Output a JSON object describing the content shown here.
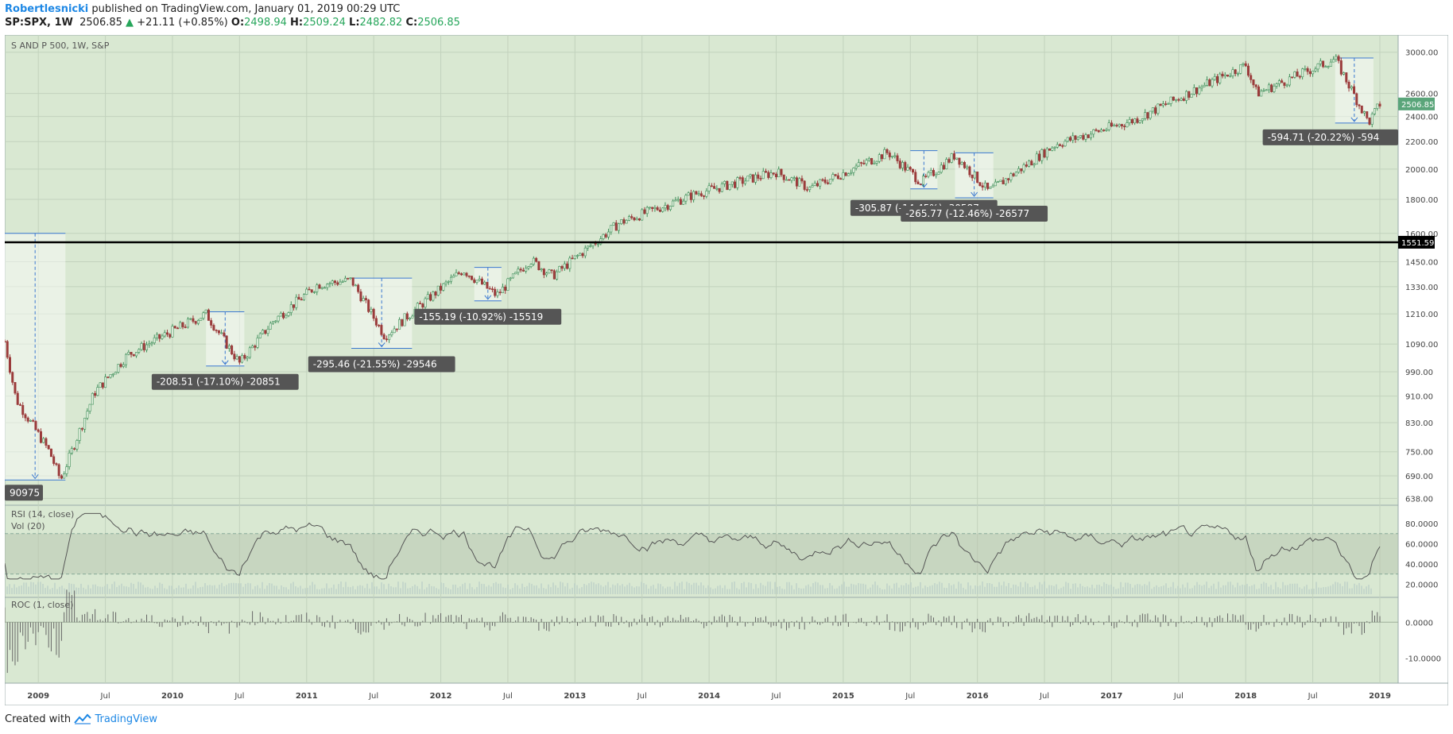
{
  "header": {
    "author": "Robertlesnicki",
    "published": "published on TradingView.com, January 01, 2019 00:29 UTC",
    "symbol": "SP:SPX, 1W",
    "last": "2506.85",
    "change_arrow": "▲",
    "change": "+21.11 (+0.85%)",
    "o_label": "O:",
    "o_value": "2498.94",
    "h_label": "H:",
    "h_value": "2509.24",
    "l_label": "L:",
    "l_value": "2482.82",
    "c_label": "C:",
    "c_value": "2506.85"
  },
  "legend": {
    "main": "S AND P 500, 1W, S&P",
    "rsi": "RSI (14, close)",
    "vol": "Vol (20)",
    "roc": "ROC (1, close)"
  },
  "colors": {
    "background": "#d9e8d2",
    "up": "#3f8f5a",
    "down": "#9b3b3b",
    "annotation": "#555555",
    "measure_line": "#3a78d0",
    "price_tag": "#5aa57a",
    "support_line": "#000000"
  },
  "price_axis": {
    "ticks": [
      "3000.00",
      "2600.00",
      "2400.00",
      "2200.00",
      "2000.00",
      "1800.00",
      "1600.00",
      "1450.00",
      "1330.00",
      "1210.00",
      "1090.00",
      "990.00",
      "910.00",
      "830.00",
      "750.00",
      "690.00",
      "638.00"
    ],
    "current_tag": "2506.85",
    "line_tag": "1551.59"
  },
  "rsi_axis": {
    "ticks": [
      "80.0000",
      "60.0000",
      "40.0000",
      "20.0000"
    ]
  },
  "roc_axis": {
    "ticks": [
      "0.0000",
      "-10.0000"
    ]
  },
  "time_axis": {
    "labels": [
      "2009",
      "Jul",
      "2010",
      "Jul",
      "2011",
      "Jul",
      "2012",
      "Jul",
      "2013",
      "Jul",
      "2014",
      "Jul",
      "2015",
      "Jul",
      "2016",
      "Jul",
      "2017",
      "Jul",
      "2018",
      "Jul",
      "2019"
    ]
  },
  "annotations": [
    {
      "text": "90975"
    },
    {
      "text": "-208.51 (-17.10%) -20851"
    },
    {
      "text": "-295.46 (-21.55%) -29546"
    },
    {
      "text": "-155.19 (-10.92%) -15519"
    },
    {
      "text": "-305.87 (-14.45%) -30587"
    },
    {
      "text": "-265.77 (-12.46%) -26577"
    },
    {
      "text": "-594.71 (-20.22%) -594"
    }
  ],
  "chart_data": {
    "type": "candlestick",
    "symbol": "SP:SPX",
    "interval": "1W",
    "scale": "log",
    "y_range": [
      630,
      3150
    ],
    "x_range": [
      "2008-10",
      "2019-01"
    ],
    "horizontal_line": 1551.59,
    "anchor_points": [
      {
        "date": "2008-10",
        "close": 1100
      },
      {
        "date": "2008-11",
        "close": 900
      },
      {
        "date": "2009-02",
        "close": 750
      },
      {
        "date": "2009-03",
        "close": 680
      },
      {
        "date": "2009-06",
        "close": 920
      },
      {
        "date": "2009-09",
        "close": 1050
      },
      {
        "date": "2010-01",
        "close": 1140
      },
      {
        "date": "2010-04",
        "close": 1210
      },
      {
        "date": "2010-07",
        "close": 1020
      },
      {
        "date": "2010-10",
        "close": 1180
      },
      {
        "date": "2011-02",
        "close": 1340
      },
      {
        "date": "2011-05",
        "close": 1360
      },
      {
        "date": "2011-08",
        "close": 1120
      },
      {
        "date": "2011-10",
        "close": 1200
      },
      {
        "date": "2012-03",
        "close": 1410
      },
      {
        "date": "2012-06",
        "close": 1290
      },
      {
        "date": "2012-09",
        "close": 1460
      },
      {
        "date": "2012-11",
        "close": 1380
      },
      {
        "date": "2013-05",
        "close": 1660
      },
      {
        "date": "2013-12",
        "close": 1840
      },
      {
        "date": "2014-07",
        "close": 1980
      },
      {
        "date": "2014-10",
        "close": 1870
      },
      {
        "date": "2015-05",
        "close": 2120
      },
      {
        "date": "2015-08",
        "close": 1910
      },
      {
        "date": "2015-11",
        "close": 2100
      },
      {
        "date": "2016-02",
        "close": 1850
      },
      {
        "date": "2016-08",
        "close": 2180
      },
      {
        "date": "2017-03",
        "close": 2370
      },
      {
        "date": "2018-01",
        "close": 2870
      },
      {
        "date": "2018-02",
        "close": 2600
      },
      {
        "date": "2018-09",
        "close": 2930
      },
      {
        "date": "2018-12",
        "close": 2350
      },
      {
        "date": "2019-01",
        "close": 2506.85
      }
    ],
    "drawdowns": [
      {
        "from": "2008-10",
        "to": "2009-03",
        "high": 1600,
        "low": 680,
        "label": "90975"
      },
      {
        "from": "2010-04",
        "to": "2010-07",
        "high": 1219,
        "low": 1010,
        "label": "-208.51 (-17.10%) -20851"
      },
      {
        "from": "2011-05",
        "to": "2011-10",
        "high": 1370,
        "low": 1074,
        "label": "-295.46 (-21.55%) -29546"
      },
      {
        "from": "2012-04",
        "to": "2012-06",
        "high": 1422,
        "low": 1266,
        "label": "-155.19 (-10.92%) -15519"
      },
      {
        "from": "2015-07",
        "to": "2015-09",
        "high": 2132,
        "low": 1867,
        "label": "-265.77 (-12.46%) -26577"
      },
      {
        "from": "2015-11",
        "to": "2016-02",
        "high": 2116,
        "low": 1810,
        "label": "-305.87 (-14.45%) -30587"
      },
      {
        "from": "2018-09",
        "to": "2018-12",
        "high": 2940,
        "low": 2346,
        "label": "-594.71 (-20.22%) -594"
      }
    ],
    "indicators": [
      "RSI (14, close)",
      "Vol (20)",
      "ROC (1, close)"
    ],
    "rsi_band": [
      30,
      70
    ],
    "rsi_range": [
      10,
      95
    ],
    "roc_range": [
      -16,
      6
    ]
  }
}
